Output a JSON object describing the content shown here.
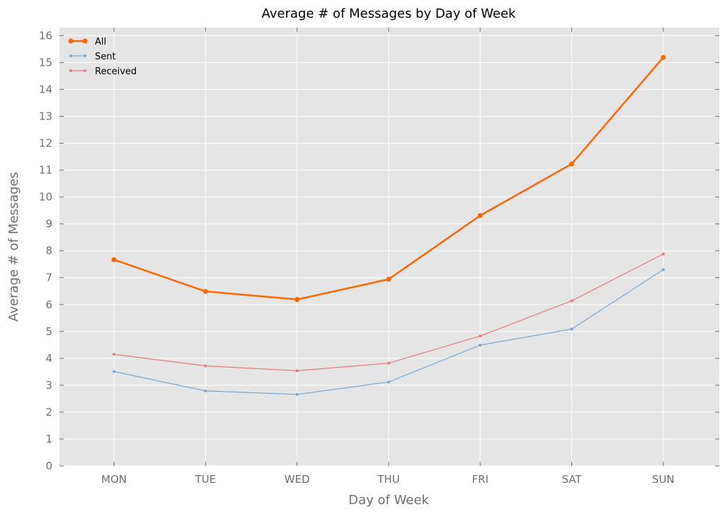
{
  "chart_data": {
    "type": "line",
    "title": "Average # of Messages by Day of Week",
    "xlabel": "Day of Week",
    "ylabel": "Average # of Messages",
    "categories": [
      "MON",
      "TUE",
      "WED",
      "THU",
      "FRI",
      "SAT",
      "SUN"
    ],
    "ylim": [
      0,
      16.3
    ],
    "yticks": [
      "0",
      "1",
      "2",
      "3",
      "4",
      "5",
      "6",
      "7",
      "8",
      "9",
      "10",
      "11",
      "12",
      "13",
      "14",
      "15",
      "16"
    ],
    "grid": true,
    "legend_position": "top-left",
    "background": "#e5e5e5",
    "series": [
      {
        "name": "All",
        "color": "#ff6600",
        "values": [
          7.67,
          6.49,
          6.19,
          6.94,
          9.31,
          11.23,
          15.19
        ]
      },
      {
        "name": "Sent",
        "color": "#7aa6cc",
        "values": [
          3.51,
          2.79,
          2.66,
          3.12,
          4.49,
          5.09,
          7.3
        ]
      },
      {
        "name": "Received",
        "color": "#e27b7b",
        "values": [
          4.15,
          3.72,
          3.54,
          3.82,
          4.83,
          6.14,
          7.88
        ]
      }
    ]
  }
}
